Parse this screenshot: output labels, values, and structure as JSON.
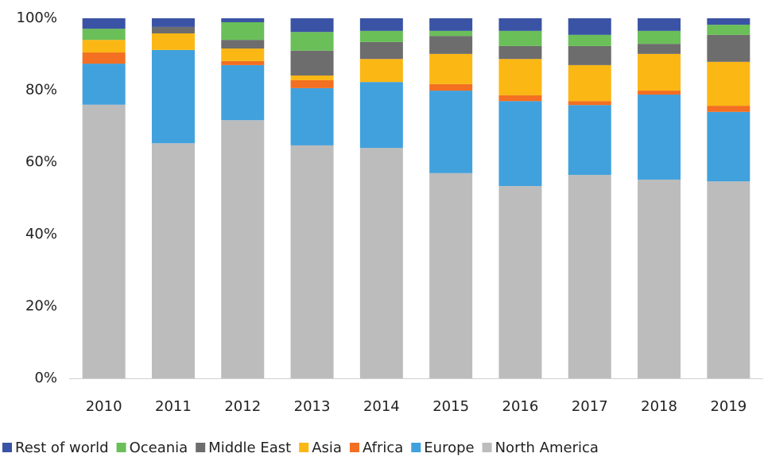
{
  "chart_data": {
    "type": "stacked_bar",
    "categories": [
      "2010",
      "2011",
      "2012",
      "2013",
      "2014",
      "2015",
      "2016",
      "2017",
      "2018",
      "2019"
    ],
    "series": [
      {
        "name": "Rest of world",
        "color": "#3a53a4",
        "values": [
          2.9,
          2.4,
          1.1,
          3.8,
          3.5,
          3.5,
          3.5,
          4.6,
          3.5,
          1.8
        ]
      },
      {
        "name": "Oceania",
        "color": "#6abf59",
        "values": [
          3.1,
          0,
          4.9,
          5.2,
          3.1,
          1.4,
          4.2,
          3.1,
          3.6,
          2.8
        ]
      },
      {
        "name": "Middle East",
        "color": "#6d6d6d",
        "values": [
          0,
          1.8,
          2.4,
          6.9,
          4.7,
          5.0,
          3.6,
          5.3,
          2.8,
          7.5
        ]
      },
      {
        "name": "Asia",
        "color": "#fbb714",
        "values": [
          3.5,
          4.6,
          3.5,
          1.3,
          6.4,
          8.4,
          10.1,
          10.0,
          10.2,
          12.2
        ]
      },
      {
        "name": "Africa",
        "color": "#f36f21",
        "values": [
          3.1,
          0,
          1.1,
          2.2,
          0,
          1.8,
          1.6,
          1.1,
          1.1,
          1.7
        ]
      },
      {
        "name": "Europe",
        "color": "#41a1dc",
        "values": [
          11.4,
          25.9,
          15.3,
          15.9,
          18.3,
          22.9,
          23.6,
          19.4,
          23.6,
          19.3
        ]
      },
      {
        "name": "North America",
        "color": "#bcbcbd",
        "values": [
          76.0,
          65.3,
          71.7,
          64.7,
          64.0,
          57.0,
          53.4,
          56.5,
          55.2,
          54.7
        ]
      }
    ],
    "ylim": [
      0,
      100
    ],
    "yticks": [
      {
        "value": 0,
        "label": "0%"
      },
      {
        "value": 20,
        "label": "20%"
      },
      {
        "value": 40,
        "label": "40%"
      },
      {
        "value": 60,
        "label": "60%"
      },
      {
        "value": 80,
        "label": "80%"
      },
      {
        "value": 100,
        "label": "100%"
      }
    ],
    "grid": false,
    "legend": "bottom"
  }
}
